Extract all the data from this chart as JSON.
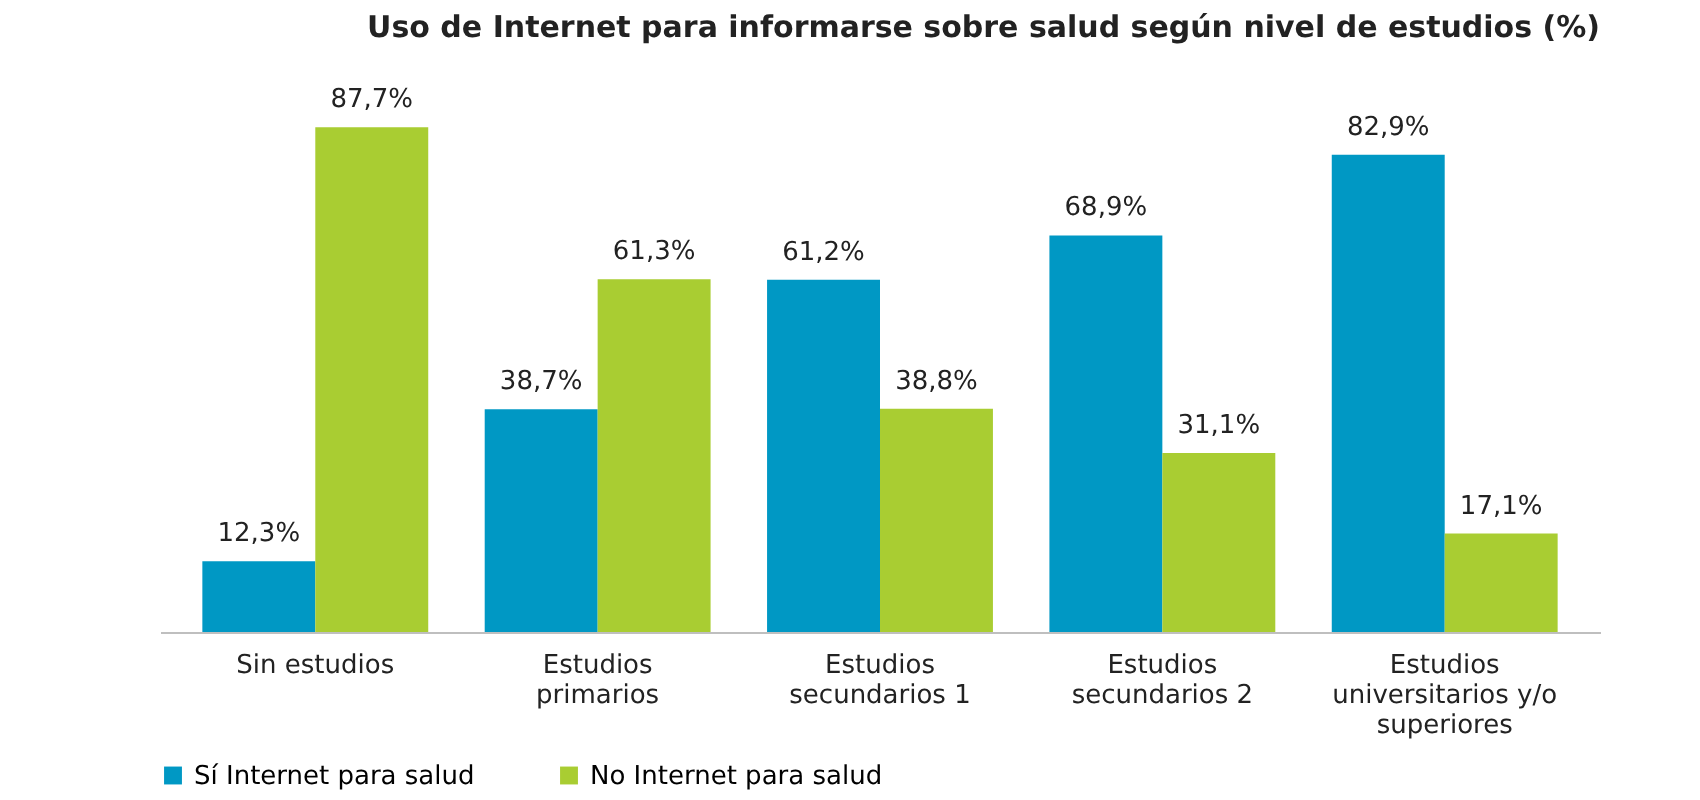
{
  "chart_data": {
    "type": "bar",
    "title": "Uso de Internet para informarse sobre salud según nivel de estudios (%)",
    "categories": [
      "Sin estudios",
      "Estudios\nprimarios",
      "Estudios\nsecundarios 1",
      "Estudios\nsecundarios 2",
      "Estudios\nuniversitarios y/o\nsuperiores"
    ],
    "series": [
      {
        "name": "Sí Internet para salud",
        "color": "#0098c4",
        "values": [
          12.3,
          38.7,
          61.2,
          68.9,
          82.9
        ],
        "value_labels": [
          "12,3%",
          "38,7%",
          "61,2%",
          "68,9%",
          "82,9%"
        ]
      },
      {
        "name": "No Internet para salud",
        "color": "#a9cd32",
        "values": [
          87.7,
          61.3,
          38.8,
          31.1,
          17.1
        ],
        "value_labels": [
          "87,7%",
          "61,3%",
          "38,8%",
          "31,1%",
          "17,1%"
        ]
      }
    ],
    "legend": "bottom",
    "grid": false
  }
}
